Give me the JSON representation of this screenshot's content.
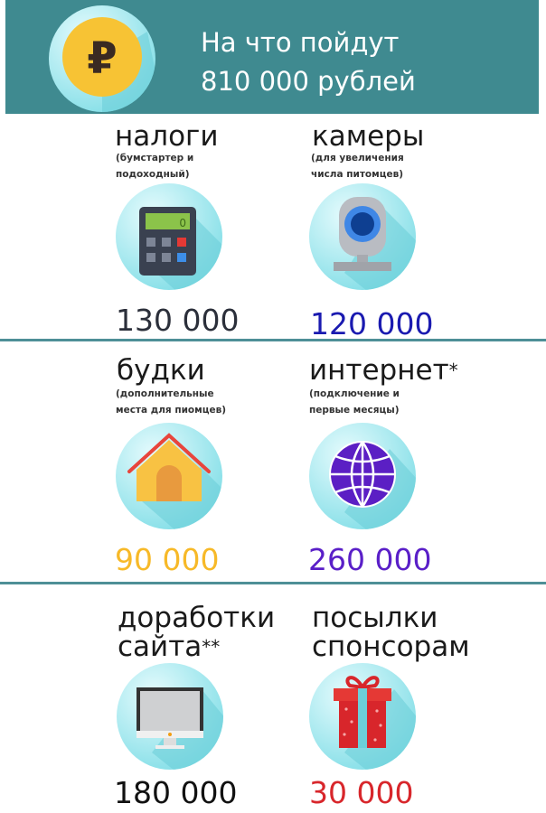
{
  "header": {
    "title_line1": "На что пойдут",
    "title_line2": "810 000 рублей",
    "icon": "ruble-coin-icon"
  },
  "items": [
    {
      "title": "налоги",
      "sub1": "(бумстартер и",
      "sub2": "подоходный)",
      "amount": "130 000",
      "color": "#2b2f3a",
      "icon": "calculator-icon"
    },
    {
      "title": "камеры",
      "sub1": "(для увеличения",
      "sub2": "числа питомцев)",
      "amount": "120 000",
      "color": "#1a1ab0",
      "icon": "webcam-icon"
    },
    {
      "title": "будки",
      "sub1": "(дополнительные",
      "sub2": "места для пиомцев)",
      "amount": "90 000",
      "color": "#f7b928",
      "icon": "doghouse-icon"
    },
    {
      "title": "интернет",
      "mark": "*",
      "sub1": "(подключение и",
      "sub2": "первые месяцы)",
      "amount": "260 000",
      "color": "#5a1fc8",
      "icon": "globe-icon"
    },
    {
      "title": "доработки",
      "title2": "сайта",
      "mark": "**",
      "amount": "180 000",
      "color": "#111111",
      "icon": "monitor-icon"
    },
    {
      "title": "посылки",
      "title2": "спонсорам",
      "amount": "30 000",
      "color": "#d8262b",
      "icon": "gift-icon"
    }
  ],
  "colors": {
    "header": "#3f8a90",
    "circle": "#8fe5ec",
    "divider": "#4e8f97"
  }
}
